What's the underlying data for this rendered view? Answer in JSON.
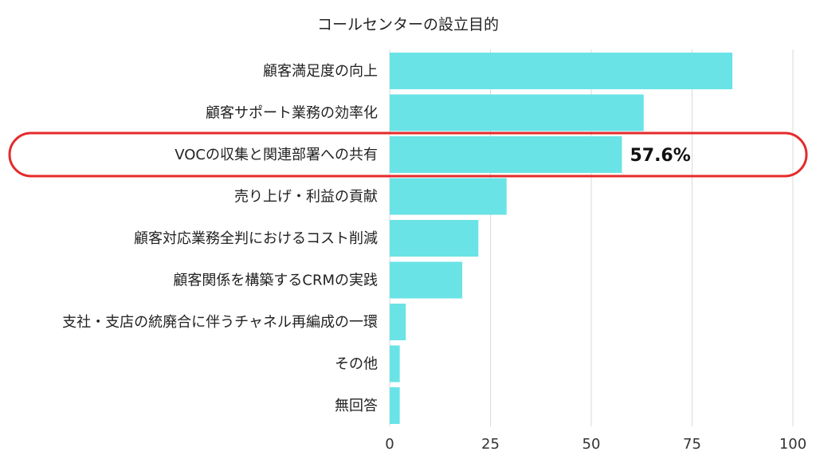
{
  "chart_data": {
    "type": "bar",
    "orientation": "horizontal",
    "title": "コールセンターの設立目的",
    "categories": [
      "顧客満足度の向上",
      "顧客サポート業務の効率化",
      "VOCの収集と関連部署への共有",
      "売り上げ・利益の貢献",
      "顧客対応業務全判におけるコスト削減",
      "顧客関係を構築するCRMの実践",
      "支社・支店の統廃合に伴うチャネル再編成の一環",
      "その他",
      "無回答"
    ],
    "values": [
      85,
      63,
      57.6,
      29,
      22,
      18,
      4,
      2.5,
      2.5
    ],
    "xlim": [
      0,
      100
    ],
    "xticks": [
      "0",
      "25",
      "50",
      "75",
      "100"
    ],
    "grid": "vertical",
    "bar_color": "#6ae3e6",
    "data_labels": [
      {
        "category_index": 2,
        "text": "57.6%"
      }
    ],
    "highlight": {
      "category_index": 2,
      "color": "#e52a2a"
    }
  }
}
